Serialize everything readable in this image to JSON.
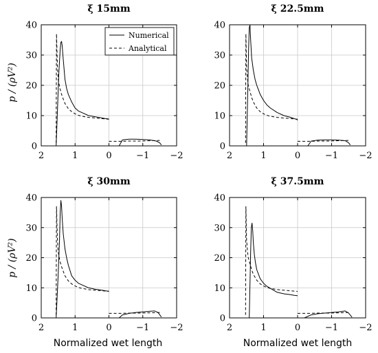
{
  "figure": {
    "ylabel": "p / (ρV²)",
    "xlabel": "Normalized wet length"
  },
  "chart_data": [
    {
      "type": "line",
      "title": "ξ 15mm",
      "xlim": [
        2,
        -2
      ],
      "ylim": [
        0,
        40
      ],
      "xticks": [
        "2",
        "1",
        "0",
        "−1",
        "−2"
      ],
      "yticks": [
        "0",
        "10",
        "20",
        "30",
        "40"
      ],
      "grid": true,
      "legend": {
        "position": "top-right",
        "entries": [
          "Numerical",
          "Analytical"
        ]
      },
      "series": [
        {
          "name": "Numerical",
          "style": "solid",
          "x": [
            1.56,
            1.48,
            1.44,
            1.42,
            1.4,
            1.38,
            1.36,
            1.33,
            1.3,
            1.25,
            1.2,
            1.1,
            1.0,
            0.9,
            0.8,
            0.6,
            0.4,
            0.2,
            0.1,
            0.02,
            0,
            null,
            -0.3,
            -0.4,
            -0.6,
            -0.8,
            -1.0,
            -1.2,
            -1.4,
            -1.5,
            -1.55
          ],
          "y": [
            0,
            24,
            32,
            34.2,
            34.5,
            33,
            30,
            26,
            22,
            19,
            17,
            14.5,
            12.5,
            11.5,
            11,
            10,
            9.6,
            9.2,
            9,
            8.9,
            8.8,
            null,
            0,
            2,
            2.2,
            2.2,
            2.1,
            2,
            1.6,
            1,
            0.3
          ]
        },
        {
          "name": "Analytical",
          "style": "dashed",
          "x": [
            1.56,
            1.55,
            1.52,
            1.5,
            1.45,
            1.4,
            1.35,
            1.3,
            1.2,
            1.1,
            1.0,
            0.9,
            0.8,
            0.6,
            0.4,
            0.2,
            0,
            null,
            0,
            -0.3,
            -0.6,
            -0.9,
            -1.2,
            -1.5
          ],
          "y": [
            1,
            37,
            26,
            22,
            19,
            17,
            15.5,
            14,
            12.3,
            11.3,
            10.6,
            10.1,
            9.8,
            9.4,
            9.2,
            9,
            8.8,
            null,
            1.5,
            1.5,
            1.6,
            1.6,
            1.7,
            1.8
          ]
        }
      ]
    },
    {
      "type": "line",
      "title": "ξ 22.5mm",
      "xlim": [
        2,
        -2
      ],
      "ylim": [
        0,
        40
      ],
      "xticks": [
        "2",
        "1",
        "0",
        "−1",
        "−2"
      ],
      "yticks": [
        "0",
        "10",
        "20",
        "30",
        "40"
      ],
      "grid": true,
      "series": [
        {
          "name": "Numerical",
          "style": "solid",
          "x": [
            1.5,
            1.46,
            1.44,
            1.42,
            1.4,
            1.38,
            1.35,
            1.3,
            1.25,
            1.2,
            1.1,
            1.0,
            0.9,
            0.8,
            0.6,
            0.4,
            0.2,
            0.1,
            0.02,
            0,
            null,
            -0.3,
            -0.4,
            -0.6,
            -0.8,
            -1.0,
            -1.2,
            -1.4,
            -1.5,
            -1.55
          ],
          "y": [
            0,
            20,
            32,
            39,
            40,
            35,
            29,
            25,
            22,
            20,
            17,
            15,
            13.5,
            12.5,
            11,
            10,
            9.4,
            9,
            8.7,
            8.5,
            null,
            0,
            1.6,
            1.9,
            2,
            2,
            1.9,
            1.7,
            1,
            0.3
          ]
        },
        {
          "name": "Analytical",
          "style": "dashed",
          "x": [
            1.53,
            1.52,
            1.5,
            1.47,
            1.45,
            1.4,
            1.35,
            1.3,
            1.2,
            1.1,
            1.0,
            0.9,
            0.8,
            0.6,
            0.4,
            0.2,
            0,
            null,
            0,
            -0.3,
            -0.6,
            -0.9,
            -1.2,
            -1.5
          ],
          "y": [
            1,
            37,
            26,
            22,
            20,
            18,
            16,
            14.5,
            12.5,
            11.3,
            10.6,
            10.1,
            9.8,
            9.4,
            9.2,
            9,
            8.8,
            null,
            1.5,
            1.5,
            1.6,
            1.6,
            1.7,
            1.8
          ]
        }
      ]
    },
    {
      "type": "line",
      "title": "ξ 30mm",
      "xlim": [
        2,
        -2
      ],
      "ylim": [
        0,
        40
      ],
      "xticks": [
        "2",
        "1",
        "0",
        "−1",
        "−2"
      ],
      "yticks": [
        "0",
        "10",
        "20",
        "30",
        "40"
      ],
      "grid": true,
      "series": [
        {
          "name": "Numerical",
          "style": "solid",
          "x": [
            1.56,
            1.5,
            1.46,
            1.44,
            1.42,
            1.4,
            1.38,
            1.35,
            1.3,
            1.25,
            1.2,
            1.1,
            1.0,
            0.9,
            0.8,
            0.6,
            0.4,
            0.2,
            0.1,
            0.02,
            0,
            null,
            -0.3,
            -0.4,
            -0.6,
            -0.8,
            -1.0,
            -1.2,
            -1.35,
            -1.45,
            -1.55
          ],
          "y": [
            0,
            14,
            26,
            35,
            39,
            37,
            33,
            28,
            23,
            20,
            17.5,
            14,
            12.5,
            11.5,
            11,
            10,
            9.5,
            9.2,
            9,
            8.9,
            8.8,
            null,
            0,
            1,
            1.5,
            1.8,
            2,
            2.2,
            2.3,
            1.8,
            0.3
          ]
        },
        {
          "name": "Analytical",
          "style": "dashed",
          "x": [
            1.56,
            1.55,
            1.52,
            1.5,
            1.45,
            1.4,
            1.35,
            1.3,
            1.2,
            1.1,
            1.0,
            0.9,
            0.8,
            0.6,
            0.4,
            0.2,
            0,
            null,
            0,
            -0.3,
            -0.6,
            -0.9,
            -1.2,
            -1.5
          ],
          "y": [
            1,
            37,
            26,
            22,
            19,
            17,
            15.5,
            14,
            12.3,
            11.3,
            10.6,
            10.1,
            9.8,
            9.4,
            9.2,
            9,
            8.8,
            null,
            1.5,
            1.5,
            1.6,
            1.6,
            1.7,
            1.8
          ]
        }
      ]
    },
    {
      "type": "line",
      "title": "ξ 37.5mm",
      "xlim": [
        2,
        -2
      ],
      "ylim": [
        0,
        40
      ],
      "xticks": [
        "2",
        "1",
        "0",
        "−1",
        "−2"
      ],
      "yticks": [
        "0",
        "10",
        "20",
        "30",
        "40"
      ],
      "grid": true,
      "series": [
        {
          "name": "Numerical",
          "style": "solid",
          "x": [
            1.42,
            1.38,
            1.36,
            1.34,
            1.32,
            1.3,
            1.27,
            1.24,
            1.2,
            1.1,
            1.0,
            0.9,
            0.8,
            0.6,
            0.4,
            0.2,
            0.1,
            0.02,
            0,
            null,
            -0.2,
            -0.4,
            -0.6,
            -0.8,
            -1.0,
            -1.2,
            -1.4,
            -1.5,
            -1.6
          ],
          "y": [
            0,
            22,
            30,
            31.5,
            29,
            25,
            21,
            18.5,
            16,
            13,
            11.5,
            10.5,
            9.8,
            8.5,
            8,
            7.7,
            7.5,
            7.4,
            7.3,
            null,
            0,
            1,
            1.4,
            1.6,
            1.8,
            2,
            2.3,
            1.6,
            0.2
          ]
        },
        {
          "name": "Analytical",
          "style": "dashed",
          "x": [
            1.53,
            1.52,
            1.5,
            1.47,
            1.45,
            1.4,
            1.35,
            1.3,
            1.2,
            1.1,
            1.0,
            0.9,
            0.8,
            0.6,
            0.4,
            0.2,
            0,
            null,
            0,
            -0.3,
            -0.6,
            -0.9,
            -1.2,
            -1.5
          ],
          "y": [
            1,
            37,
            26,
            22,
            20,
            18,
            16,
            14.5,
            12.5,
            11.3,
            10.6,
            10.1,
            9.8,
            9.4,
            9.2,
            9,
            8.8,
            null,
            1.5,
            1.5,
            1.6,
            1.6,
            1.7,
            1.8
          ]
        }
      ]
    }
  ]
}
